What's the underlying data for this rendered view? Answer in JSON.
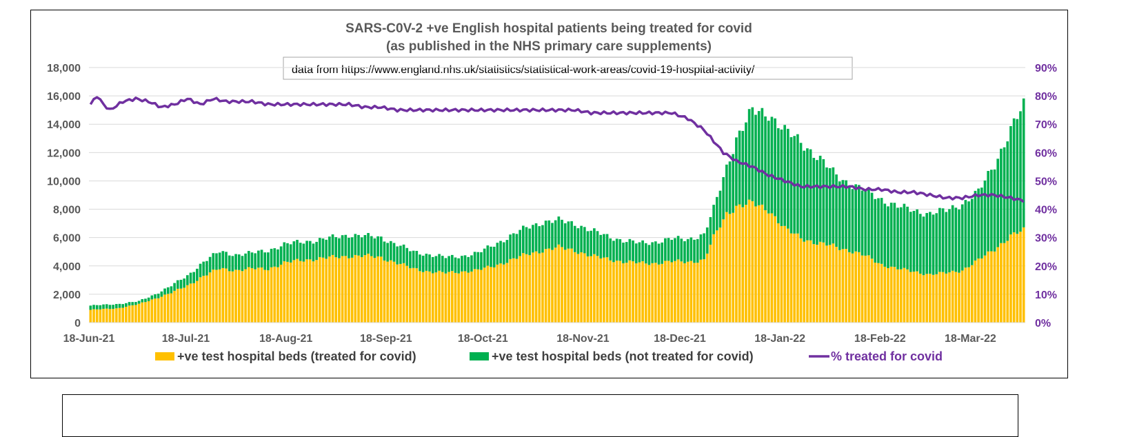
{
  "chart_data": {
    "type": "bar",
    "title_line1": "SARS-C0V-2 +ve English hospital patients being treated for covid",
    "title_line2": "(as published in the NHS primary care supplements)",
    "source_note": "data from https://www.england.nhs.uk/statistics/statistical-work-areas/covid-19-hospital-activity/",
    "left_axis": {
      "min": 0,
      "max": 18000,
      "step": 2000,
      "ticks": [
        "0",
        "2,000",
        "4,000",
        "6,000",
        "8,000",
        "10,000",
        "12,000",
        "14,000",
        "16,000",
        "18,000"
      ]
    },
    "right_axis": {
      "min": 0,
      "max": 90,
      "step": 10,
      "ticks": [
        "0%",
        "10%",
        "20%",
        "30%",
        "40%",
        "50%",
        "60%",
        "70%",
        "80%",
        "90%"
      ]
    },
    "x_axis": {
      "start_date": "2021-06-18",
      "days": 290,
      "ticks": [
        "18-Jun-21",
        "18-Jul-21",
        "18-Aug-21",
        "18-Sep-21",
        "18-Oct-21",
        "18-Nov-21",
        "18-Dec-21",
        "18-Jan-22",
        "18-Feb-22",
        "18-Mar-22"
      ],
      "tick_day_offsets": [
        0,
        30,
        61,
        92,
        122,
        153,
        183,
        214,
        245,
        273
      ]
    },
    "series": [
      {
        "name": "+ve test hospital beds (treated for covid)",
        "color": "#FFC000",
        "anchors": [
          [
            0,
            900
          ],
          [
            8,
            1000
          ],
          [
            15,
            1300
          ],
          [
            20,
            1700
          ],
          [
            25,
            2100
          ],
          [
            30,
            2600
          ],
          [
            35,
            3300
          ],
          [
            40,
            3800
          ],
          [
            45,
            3700
          ],
          [
            50,
            3800
          ],
          [
            55,
            3800
          ],
          [
            60,
            4200
          ],
          [
            65,
            4400
          ],
          [
            70,
            4500
          ],
          [
            75,
            4600
          ],
          [
            80,
            4700
          ],
          [
            85,
            4700
          ],
          [
            90,
            4600
          ],
          [
            95,
            4200
          ],
          [
            100,
            3800
          ],
          [
            105,
            3600
          ],
          [
            110,
            3500
          ],
          [
            115,
            3600
          ],
          [
            120,
            3700
          ],
          [
            125,
            4000
          ],
          [
            130,
            4400
          ],
          [
            135,
            4800
          ],
          [
            140,
            5100
          ],
          [
            145,
            5300
          ],
          [
            150,
            5100
          ],
          [
            155,
            4700
          ],
          [
            160,
            4500
          ],
          [
            165,
            4300
          ],
          [
            170,
            4200
          ],
          [
            175,
            4200
          ],
          [
            180,
            4300
          ],
          [
            185,
            4300
          ],
          [
            190,
            4400
          ],
          [
            193,
            6000
          ],
          [
            197,
            7700
          ],
          [
            200,
            8200
          ],
          [
            205,
            8400
          ],
          [
            210,
            8000
          ],
          [
            215,
            6600
          ],
          [
            220,
            6000
          ],
          [
            225,
            5600
          ],
          [
            230,
            5400
          ],
          [
            235,
            5100
          ],
          [
            240,
            4700
          ],
          [
            245,
            4100
          ],
          [
            250,
            3800
          ],
          [
            255,
            3600
          ],
          [
            260,
            3400
          ],
          [
            265,
            3500
          ],
          [
            270,
            3700
          ],
          [
            275,
            4400
          ],
          [
            280,
            5200
          ],
          [
            285,
            6100
          ],
          [
            289,
            6500
          ]
        ]
      },
      {
        "name": "+ve test hospital beds (not treated for covid)",
        "color": "#00B050",
        "total_anchors": [
          [
            0,
            1200
          ],
          [
            8,
            1300
          ],
          [
            15,
            1500
          ],
          [
            20,
            2000
          ],
          [
            25,
            2600
          ],
          [
            30,
            3300
          ],
          [
            35,
            4300
          ],
          [
            40,
            5000
          ],
          [
            45,
            4800
          ],
          [
            50,
            4900
          ],
          [
            55,
            5100
          ],
          [
            60,
            5500
          ],
          [
            65,
            5700
          ],
          [
            70,
            5800
          ],
          [
            75,
            6000
          ],
          [
            80,
            6200
          ],
          [
            85,
            6100
          ],
          [
            90,
            6000
          ],
          [
            95,
            5500
          ],
          [
            100,
            5000
          ],
          [
            105,
            4800
          ],
          [
            110,
            4600
          ],
          [
            115,
            4700
          ],
          [
            120,
            4900
          ],
          [
            125,
            5500
          ],
          [
            130,
            6100
          ],
          [
            135,
            6700
          ],
          [
            140,
            7100
          ],
          [
            145,
            7200
          ],
          [
            150,
            7000
          ],
          [
            155,
            6500
          ],
          [
            160,
            6100
          ],
          [
            165,
            5800
          ],
          [
            170,
            5600
          ],
          [
            175,
            5700
          ],
          [
            180,
            5900
          ],
          [
            185,
            5900
          ],
          [
            190,
            6200
          ],
          [
            193,
            8000
          ],
          [
            197,
            11000
          ],
          [
            200,
            13000
          ],
          [
            205,
            14900
          ],
          [
            210,
            14800
          ],
          [
            215,
            13500
          ],
          [
            220,
            12800
          ],
          [
            225,
            11700
          ],
          [
            230,
            10600
          ],
          [
            235,
            9800
          ],
          [
            240,
            9300
          ],
          [
            245,
            8700
          ],
          [
            250,
            8200
          ],
          [
            255,
            7900
          ],
          [
            260,
            7700
          ],
          [
            265,
            7900
          ],
          [
            270,
            8400
          ],
          [
            275,
            9200
          ],
          [
            280,
            11200
          ],
          [
            285,
            13600
          ],
          [
            289,
            15300
          ]
        ]
      },
      {
        "name": "% treated for covid",
        "color": "#7030A0",
        "axis": "right",
        "anchors": [
          [
            0,
            77
          ],
          [
            2,
            80
          ],
          [
            4,
            77
          ],
          [
            6,
            75
          ],
          [
            10,
            78
          ],
          [
            14,
            79
          ],
          [
            18,
            78
          ],
          [
            22,
            76
          ],
          [
            26,
            77
          ],
          [
            30,
            79
          ],
          [
            34,
            77
          ],
          [
            38,
            79
          ],
          [
            42,
            78
          ],
          [
            46,
            78
          ],
          [
            50,
            78
          ],
          [
            55,
            77
          ],
          [
            60,
            77
          ],
          [
            65,
            77
          ],
          [
            70,
            77
          ],
          [
            75,
            77
          ],
          [
            80,
            77
          ],
          [
            85,
            76
          ],
          [
            90,
            76
          ],
          [
            95,
            75
          ],
          [
            100,
            75
          ],
          [
            105,
            75
          ],
          [
            110,
            75
          ],
          [
            115,
            75
          ],
          [
            120,
            75
          ],
          [
            125,
            75
          ],
          [
            130,
            75
          ],
          [
            135,
            75
          ],
          [
            140,
            75
          ],
          [
            145,
            75
          ],
          [
            150,
            75
          ],
          [
            155,
            74
          ],
          [
            160,
            74
          ],
          [
            165,
            74
          ],
          [
            170,
            74
          ],
          [
            175,
            74
          ],
          [
            180,
            74
          ],
          [
            185,
            72
          ],
          [
            190,
            68
          ],
          [
            193,
            64
          ],
          [
            196,
            60
          ],
          [
            200,
            57
          ],
          [
            205,
            55
          ],
          [
            210,
            52
          ],
          [
            215,
            50
          ],
          [
            220,
            48
          ],
          [
            225,
            48
          ],
          [
            230,
            48
          ],
          [
            235,
            48
          ],
          [
            240,
            47
          ],
          [
            245,
            47
          ],
          [
            250,
            46
          ],
          [
            255,
            46
          ],
          [
            260,
            45
          ],
          [
            265,
            44
          ],
          [
            270,
            44
          ],
          [
            275,
            45
          ],
          [
            280,
            45
          ],
          [
            285,
            44
          ],
          [
            289,
            43
          ]
        ]
      }
    ],
    "legend": [
      {
        "label": "+ve test hospital beds (treated for covid)",
        "color": "#FFC000",
        "kind": "box"
      },
      {
        "label": "+ve test hospital beds (not treated for covid)",
        "color": "#00B050",
        "kind": "box"
      },
      {
        "label": "% treated for covid",
        "color": "#7030A0",
        "kind": "line"
      }
    ],
    "colors": {
      "gridline": "#D9D9D9",
      "left_axis_text": "#595959",
      "right_axis_text": "#7030A0"
    }
  }
}
